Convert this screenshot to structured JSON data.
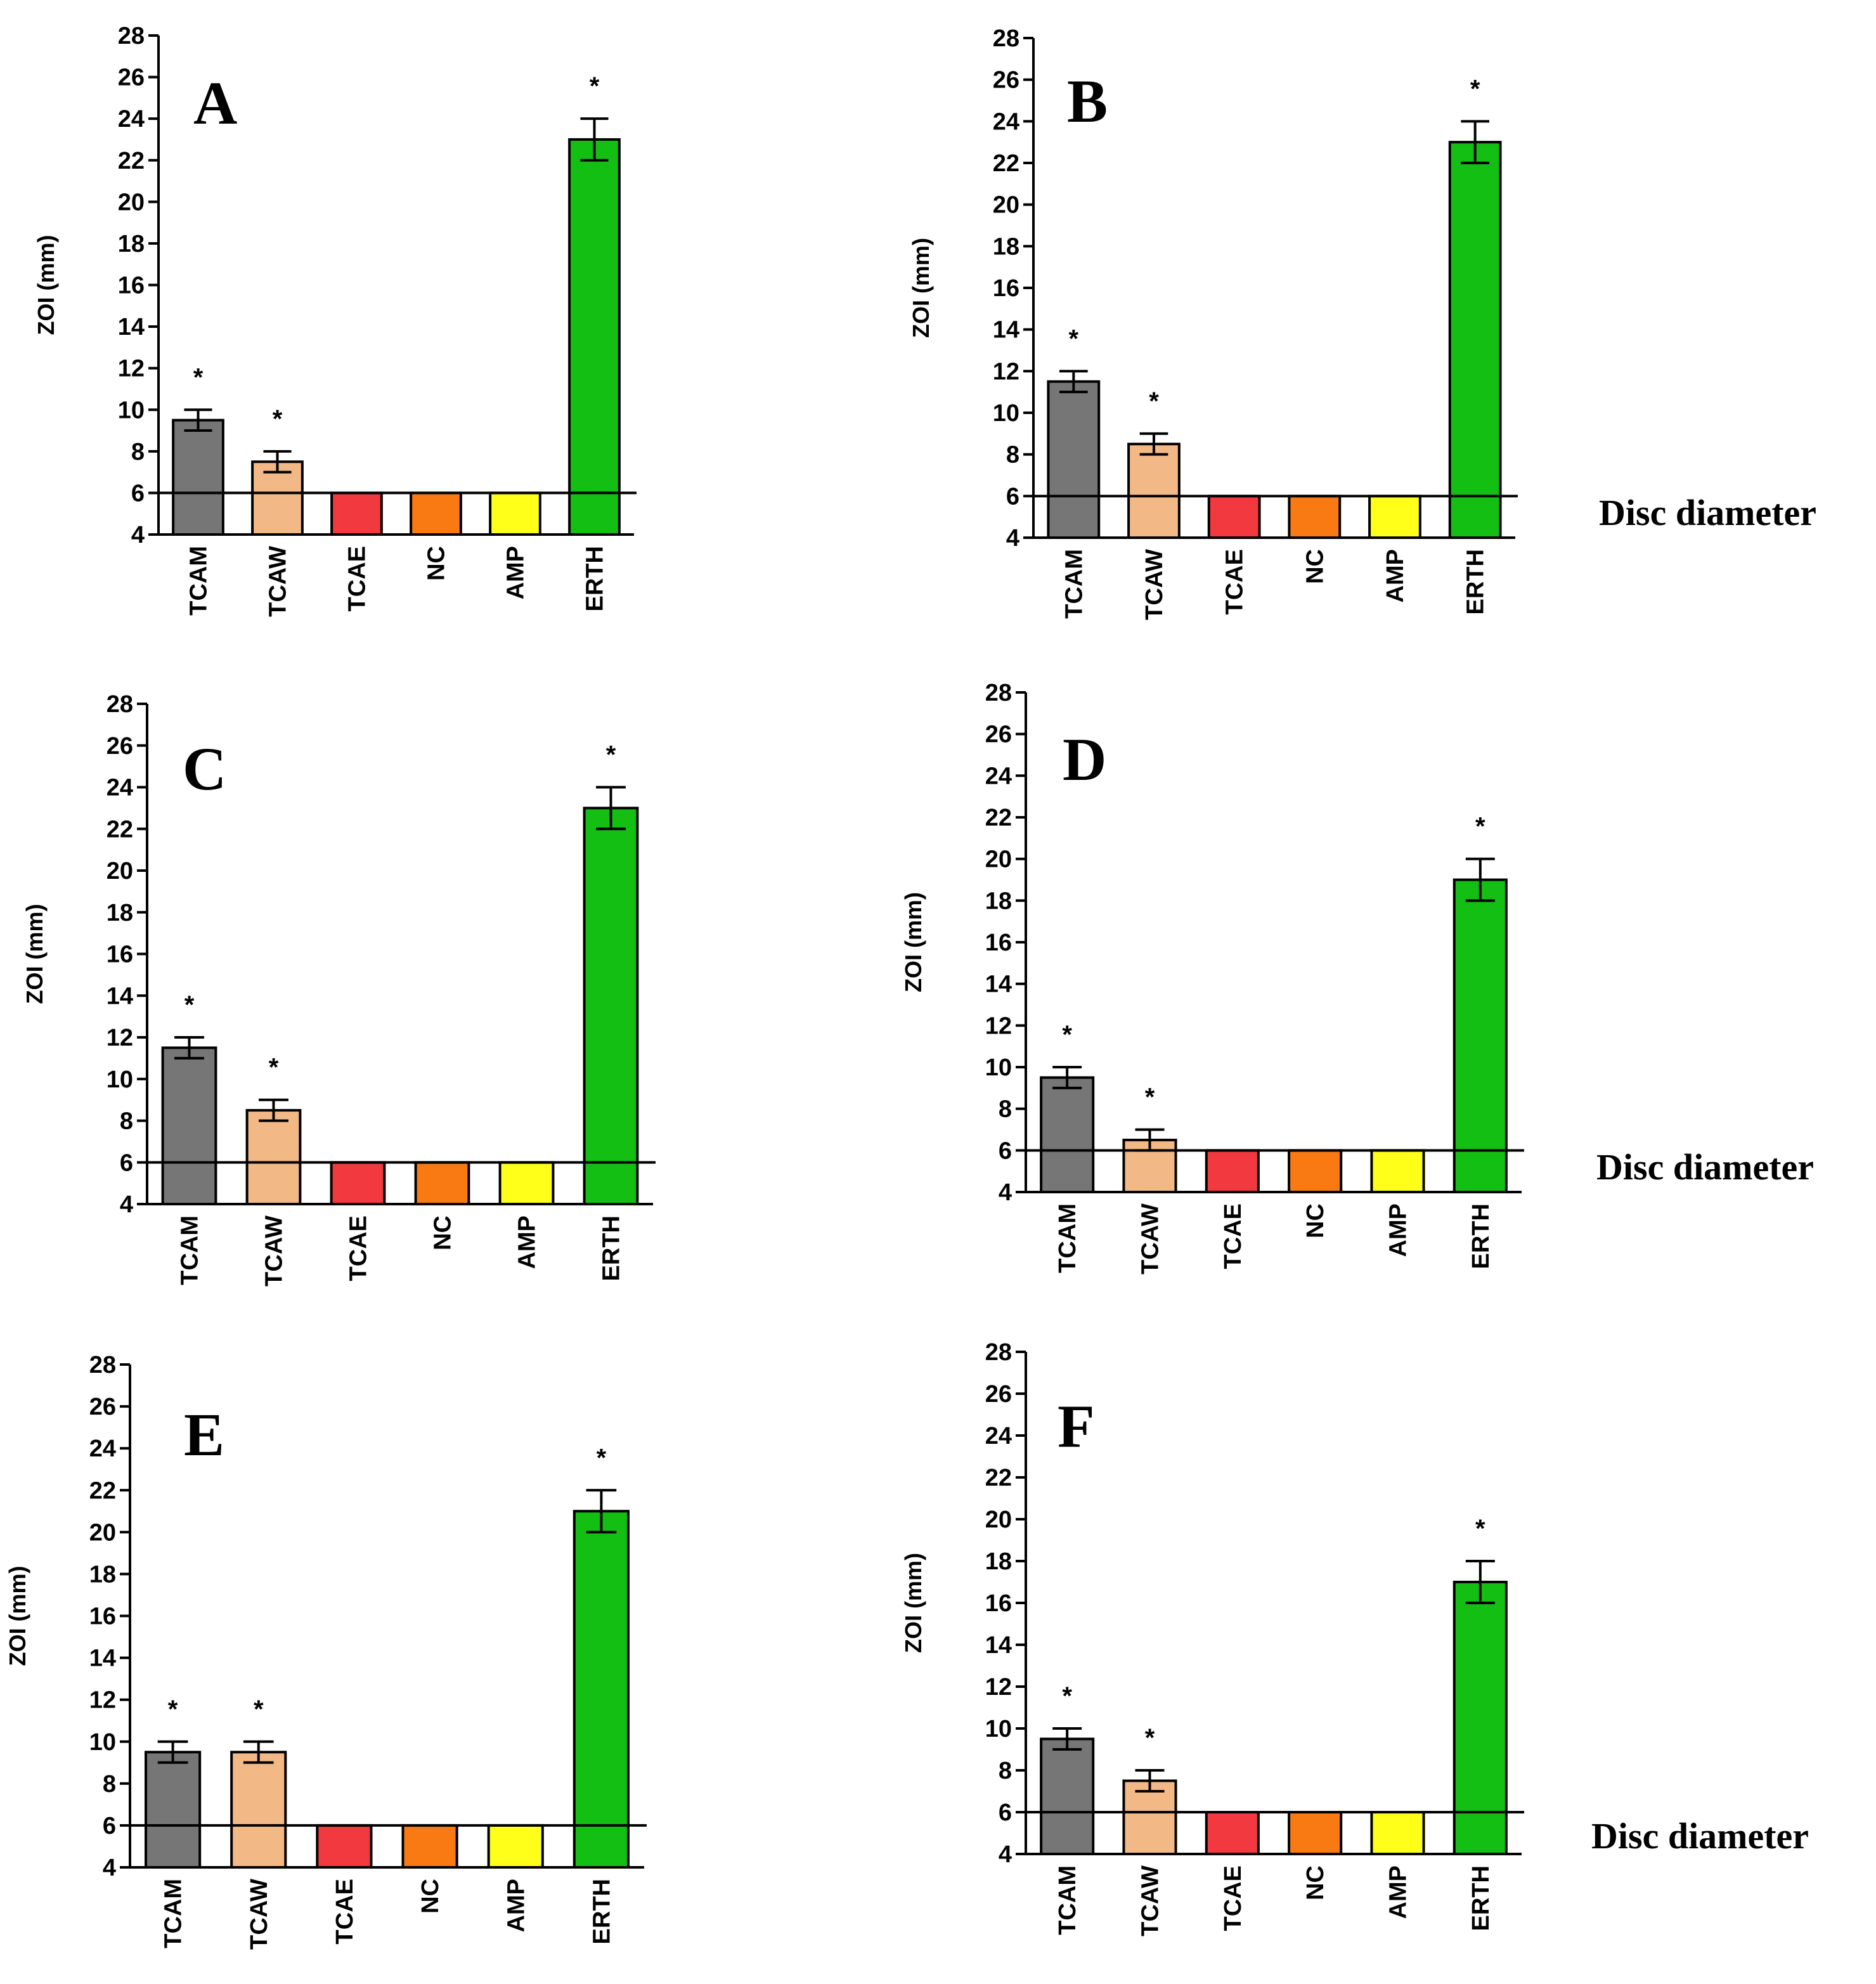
{
  "chart_data": [
    {
      "panel": "A",
      "type": "bar",
      "ylabel": "ZOI (mm)",
      "ylim": [
        4,
        28
      ],
      "yticks": [
        4,
        6,
        8,
        10,
        12,
        14,
        16,
        18,
        20,
        22,
        24,
        26,
        28
      ],
      "categories": [
        "TCAM",
        "TCAW",
        "TCAE",
        "NC",
        "AMP",
        "ERTH"
      ],
      "values": [
        9.5,
        7.5,
        6,
        6,
        6,
        23
      ],
      "errors": [
        0.5,
        0.5,
        0,
        0,
        0,
        1
      ],
      "significance": [
        "*",
        "*",
        "",
        "",
        "",
        "*"
      ],
      "reference_line": {
        "value": 6,
        "label": ""
      }
    },
    {
      "panel": "B",
      "type": "bar",
      "ylabel": "ZOI (mm)",
      "ylim": [
        4,
        28
      ],
      "yticks": [
        4,
        6,
        8,
        10,
        12,
        14,
        16,
        18,
        20,
        22,
        24,
        26,
        28
      ],
      "categories": [
        "TCAM",
        "TCAW",
        "TCAE",
        "NC",
        "AMP",
        "ERTH"
      ],
      "values": [
        11.5,
        8.5,
        6,
        6,
        6,
        23
      ],
      "errors": [
        0.5,
        0.5,
        0,
        0,
        0,
        1
      ],
      "significance": [
        "*",
        "*",
        "",
        "",
        "",
        "*"
      ],
      "reference_line": {
        "value": 6,
        "label": "Disc diameter"
      }
    },
    {
      "panel": "C",
      "type": "bar",
      "ylabel": "ZOI (mm)",
      "ylim": [
        4,
        28
      ],
      "yticks": [
        4,
        6,
        8,
        10,
        12,
        14,
        16,
        18,
        20,
        22,
        24,
        26,
        28
      ],
      "categories": [
        "TCAM",
        "TCAW",
        "TCAE",
        "NC",
        "AMP",
        "ERTH"
      ],
      "values": [
        11.5,
        8.5,
        6,
        6,
        6,
        23
      ],
      "errors": [
        0.5,
        0.5,
        0,
        0,
        0,
        1
      ],
      "significance": [
        "*",
        "*",
        "",
        "",
        "",
        "*"
      ],
      "reference_line": {
        "value": 6,
        "label": ""
      }
    },
    {
      "panel": "D",
      "type": "bar",
      "ylabel": "ZOI (mm)",
      "ylim": [
        4,
        28
      ],
      "yticks": [
        4,
        6,
        8,
        10,
        12,
        14,
        16,
        18,
        20,
        22,
        24,
        26,
        28
      ],
      "categories": [
        "TCAM",
        "TCAW",
        "TCAE",
        "NC",
        "AMP",
        "ERTH"
      ],
      "values": [
        9.5,
        6.5,
        6,
        6,
        6,
        19
      ],
      "errors": [
        0.5,
        0.5,
        0,
        0,
        0,
        1
      ],
      "significance": [
        "*",
        "*",
        "",
        "",
        "",
        "*"
      ],
      "reference_line": {
        "value": 6,
        "label": "Disc diameter"
      }
    },
    {
      "panel": "E",
      "type": "bar",
      "ylabel": "ZOI (mm)",
      "ylim": [
        4,
        28
      ],
      "yticks": [
        4,
        6,
        8,
        10,
        12,
        14,
        16,
        18,
        20,
        22,
        24,
        26,
        28
      ],
      "categories": [
        "TCAM",
        "TCAW",
        "TCAE",
        "NC",
        "AMP",
        "ERTH"
      ],
      "values": [
        9.5,
        9.5,
        6,
        6,
        6,
        21
      ],
      "errors": [
        0.5,
        0.5,
        0,
        0,
        0,
        1
      ],
      "significance": [
        "*",
        "*",
        "",
        "",
        "",
        "*"
      ],
      "reference_line": {
        "value": 6,
        "label": ""
      }
    },
    {
      "panel": "F",
      "type": "bar",
      "ylabel": "ZOI (mm)",
      "ylim": [
        4,
        28
      ],
      "yticks": [
        4,
        6,
        8,
        10,
        12,
        14,
        16,
        18,
        20,
        22,
        24,
        26,
        28
      ],
      "categories": [
        "TCAM",
        "TCAW",
        "TCAE",
        "NC",
        "AMP",
        "ERTH"
      ],
      "values": [
        9.5,
        7.5,
        6,
        6,
        6,
        17
      ],
      "errors": [
        0.5,
        0.5,
        0,
        0,
        0,
        1
      ],
      "significance": [
        "*",
        "*",
        "",
        "",
        "",
        "*"
      ],
      "reference_line": {
        "value": 6,
        "label": "Disc diameter"
      }
    }
  ],
  "colors": {
    "TCAM": "#767676",
    "TCAW": "#F2B886",
    "TCAE": "#F2393F",
    "NC": "#F97A12",
    "AMP": "#FFFF1A",
    "ERTH": "#12BF12"
  }
}
